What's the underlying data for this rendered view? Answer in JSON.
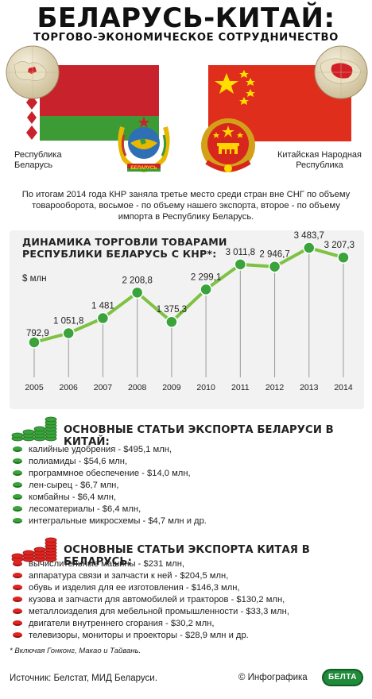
{
  "header": {
    "title": "БЕЛАРУСЬ-КИТАЙ:",
    "subtitle": "ТОРГОВО-ЭКОНОМИЧЕСКОЕ СОТРУДНИЧЕСТВО"
  },
  "countries": {
    "belarus": "Республика\nБеларусь",
    "china": "Китайская Народная\nРеспублика"
  },
  "emblems": {
    "belarus_ribbon": "БЕЛАРУСЬ",
    "china_ribbon": ""
  },
  "intro": "По итогам 2014 года КНР заняла третье место среди стран вне СНГ по объему товарооборота, восьмое - по объему нашего экспорта, второе - по объему импорта в Республику Беларусь.",
  "chart_data": {
    "type": "line",
    "title": "ДИНАМИКА ТОРГОВЛИ ТОВАРАМИ\nРЕСПУБЛИКИ БЕЛАРУСЬ С КНР*:",
    "ylabel": "$ млн",
    "xlabel": "",
    "categories": [
      "2005",
      "2006",
      "2007",
      "2008",
      "2009",
      "2010",
      "2011",
      "2012",
      "2013",
      "2014"
    ],
    "values": [
      792.9,
      1051.8,
      1481,
      2208.8,
      1375.3,
      2299.1,
      3011.8,
      2946.7,
      3483.7,
      3207.3
    ],
    "value_labels": [
      "792,9",
      "1 051,8",
      "1 481",
      "2 208,8",
      "1 375,3",
      "2 299,1",
      "3 011,8",
      "2 946,7",
      "3 483,7",
      "3 207,3"
    ],
    "ylim": [
      0,
      3800
    ],
    "grid": false,
    "line_color": "#7dc242",
    "marker_color": "#3aa33b",
    "drop_line_color": "#999999"
  },
  "export_by": {
    "title": "ОСНОВНЫЕ СТАТЬИ ЭКСПОРТА БЕЛАРУСИ В КИТАЙ:",
    "color": "#3aa33b",
    "items": [
      "калийные удобрения - $495,1 млн,",
      "полиамиды - $54,6 млн,",
      "программное обеспечение - $14,0 млн,",
      "лен-сырец - $6,7 млн,",
      "комбайны - $6,4 млн,",
      "лесоматериалы - $6,4 млн,",
      "интегральные микросхемы - $4,7 млн и др."
    ]
  },
  "export_cn": {
    "title": "ОСНОВНЫЕ СТАТЬИ ЭКСПОРТА КИТАЯ В БЕЛАРУСЬ:",
    "color": "#e02422",
    "items": [
      "вычислительные машины - $231 млн,",
      "аппаратура связи и запчасти к ней - $204,5 млн,",
      "обувь и изделия для ее изготовления - $146,3 млн,",
      "кузова и запчасти для автомобилей и тракторов - $130,2 млн,",
      "металлоизделия для мебельной промышленности - $33,3 млн,",
      "двигатели внутреннего сгорания - $30,2 млн,",
      "телевизоры, мониторы и проекторы - $28,9 млн и др."
    ]
  },
  "footnote": "* Включая Гонконг, Макао и Тайвань.",
  "footer": {
    "source": "Источник: Белстат, МИД Беларуси.",
    "credit": "© Инфографика",
    "logo": "БЕЛТА"
  }
}
